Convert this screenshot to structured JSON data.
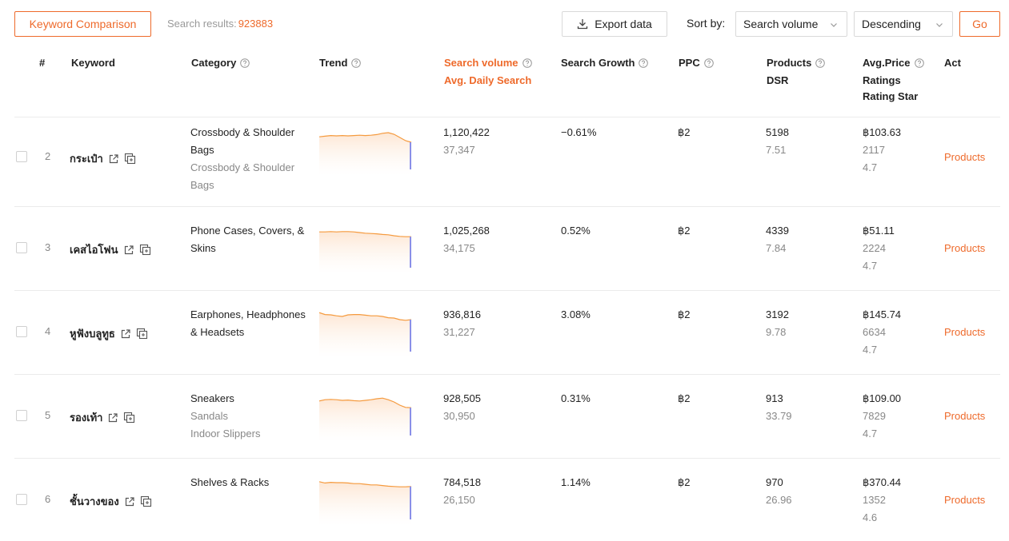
{
  "toolbar": {
    "keyword_comparison_label": "Keyword Comparison",
    "search_results_label": "Search results:",
    "search_results_count": "923883",
    "export_label": "Export data",
    "sort_by_label": "Sort by:",
    "sort_field_value": "Search volume",
    "sort_order_value": "Descending",
    "go_label": "Go"
  },
  "columns": {
    "num": "#",
    "keyword": "Keyword",
    "category": "Category",
    "trend": "Trend",
    "search_volume": "Search volume",
    "avg_daily_search": "Avg. Daily Search",
    "search_growth": "Search Growth",
    "ppc": "PPC",
    "products": "Products",
    "dsr": "DSR",
    "avg_price": "Avg.Price",
    "ratings": "Ratings",
    "rating_star": "Rating Star",
    "act": "Act"
  },
  "rows": [
    {
      "num": "2",
      "keyword": "กระเป๋า",
      "category_main": "Crossbody & Shoulder Bags",
      "category_sub": [
        "Crossbody & Shoulder Bags"
      ],
      "search_volume": "1,120,422",
      "avg_daily_search": "37,347",
      "search_growth": "−0.61%",
      "ppc": "฿2",
      "products": "5198",
      "dsr": "7.51",
      "avg_price": "฿103.63",
      "ratings": "2117",
      "rating_star": "4.7",
      "action_label": "Products",
      "trend": [
        0.72,
        0.74,
        0.76,
        0.75,
        0.76,
        0.75,
        0.76,
        0.77,
        0.76,
        0.77,
        0.79,
        0.83,
        0.85,
        0.8,
        0.7,
        0.6,
        0.55
      ]
    },
    {
      "num": "3",
      "keyword": "เคสไอโฟน",
      "category_main": "Phone Cases, Covers, & Skins",
      "category_sub": [],
      "search_volume": "1,025,268",
      "avg_daily_search": "34,175",
      "search_growth": "0.52%",
      "ppc": "฿2",
      "products": "4339",
      "dsr": "7.84",
      "avg_price": "฿51.11",
      "ratings": "2224",
      "rating_star": "4.7",
      "action_label": "Products",
      "trend": [
        0.82,
        0.82,
        0.83,
        0.82,
        0.83,
        0.83,
        0.82,
        0.8,
        0.78,
        0.77,
        0.76,
        0.74,
        0.73,
        0.7,
        0.68,
        0.67,
        0.67
      ]
    },
    {
      "num": "4",
      "keyword": "หูฟังบลูทูธ",
      "category_main": "Earphones, Headphones & Headsets",
      "category_sub": [],
      "search_volume": "936,816",
      "avg_daily_search": "31,227",
      "search_growth": "3.08%",
      "ppc": "฿2",
      "products": "3192",
      "dsr": "9.78",
      "avg_price": "฿145.74",
      "ratings": "6634",
      "rating_star": "4.7",
      "action_label": "Products",
      "trend": [
        0.92,
        0.86,
        0.85,
        0.82,
        0.8,
        0.85,
        0.86,
        0.86,
        0.84,
        0.82,
        0.82,
        0.8,
        0.76,
        0.75,
        0.7,
        0.68,
        0.7
      ]
    },
    {
      "num": "5",
      "keyword": "รองเท้า",
      "category_main": "Sneakers",
      "category_sub": [
        "Sandals",
        "Indoor Slippers"
      ],
      "search_volume": "928,505",
      "avg_daily_search": "30,950",
      "search_growth": "0.31%",
      "ppc": "฿2",
      "products": "913",
      "dsr": "33.79",
      "avg_price": "฿109.00",
      "ratings": "7829",
      "rating_star": "4.7",
      "action_label": "Products",
      "trend": [
        0.78,
        0.82,
        0.83,
        0.82,
        0.8,
        0.81,
        0.79,
        0.78,
        0.8,
        0.82,
        0.85,
        0.87,
        0.82,
        0.75,
        0.65,
        0.58,
        0.57
      ]
    },
    {
      "num": "6",
      "keyword": "ชั้นวางของ",
      "category_main": "Shelves & Racks",
      "category_sub": [],
      "search_volume": "784,518",
      "avg_daily_search": "26,150",
      "search_growth": "1.14%",
      "ppc": "฿2",
      "products": "970",
      "dsr": "26.96",
      "avg_price": "฿370.44",
      "ratings": "1352",
      "rating_star": "4.6",
      "action_label": "Products",
      "trend": [
        0.88,
        0.84,
        0.86,
        0.85,
        0.85,
        0.84,
        0.82,
        0.82,
        0.8,
        0.78,
        0.78,
        0.76,
        0.74,
        0.73,
        0.72,
        0.72,
        0.73
      ]
    }
  ],
  "colors": {
    "accent": "#ee6a2b",
    "trend_line": "#f59a3e",
    "trend_fill": "#fde6d3",
    "trend_marker": "#8a8fe8"
  }
}
